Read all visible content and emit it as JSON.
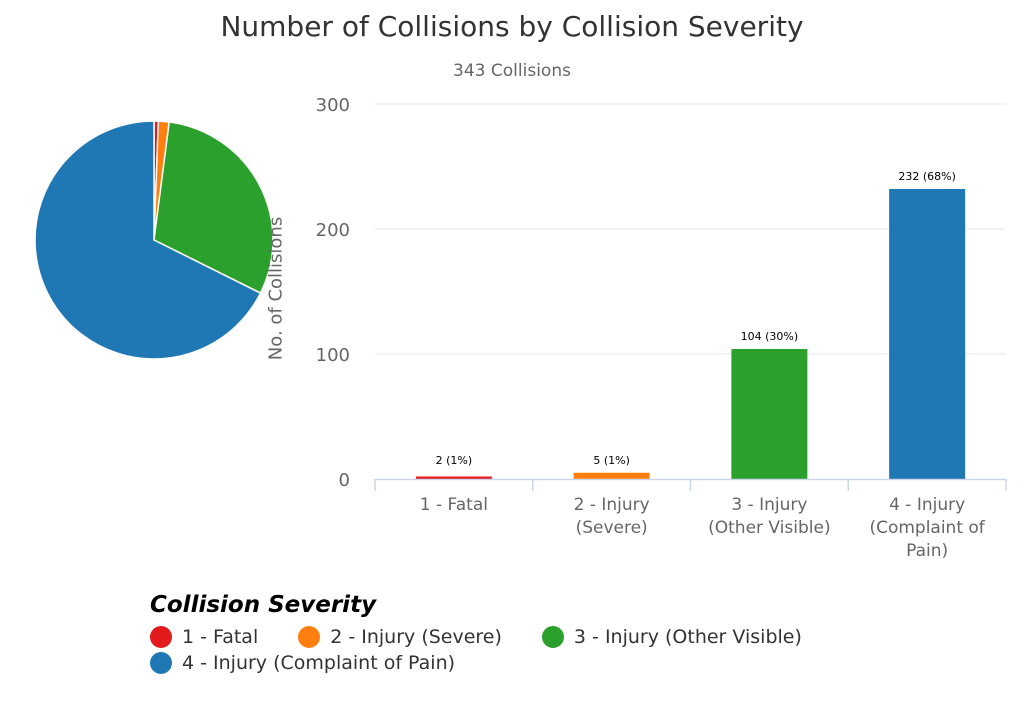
{
  "chart_data": {
    "type": "bar",
    "title": "Number of Collisions by Collision Severity",
    "subtitle": "343 Collisions",
    "ylabel": "No. of Collisions",
    "xlabel": "",
    "ylim": [
      0,
      300
    ],
    "yticks": [
      0,
      100,
      200,
      300
    ],
    "grid": true,
    "categories": [
      "1 - Fatal",
      "2 - Injury (Severe)",
      "3 - Injury (Other Visible)",
      "4 - Injury (Complaint of Pain)"
    ],
    "category_labels": [
      [
        "1 - Fatal"
      ],
      [
        "2 - Injury",
        "(Severe)"
      ],
      [
        "3 - Injury",
        "(Other Visible)"
      ],
      [
        "4 - Injury",
        "(Complaint of",
        "Pain)"
      ]
    ],
    "values": [
      2,
      5,
      104,
      232
    ],
    "data_labels": [
      "2 (1%)",
      "5 (1%)",
      "104 (30%)",
      "232 (68%)"
    ],
    "colors": [
      "#e31a1c",
      "#ff7f0e",
      "#2ca02c",
      "#1f77b4"
    ],
    "companion_pie": {
      "type": "pie",
      "values": [
        2,
        5,
        104,
        232
      ]
    },
    "legend": {
      "title": "Collision Severity",
      "placement": "bottom-left",
      "items": [
        "1 - Fatal",
        "2 - Injury (Severe)",
        "3 - Injury (Other Visible)",
        "4 - Injury (Complaint of Pain)"
      ]
    }
  }
}
